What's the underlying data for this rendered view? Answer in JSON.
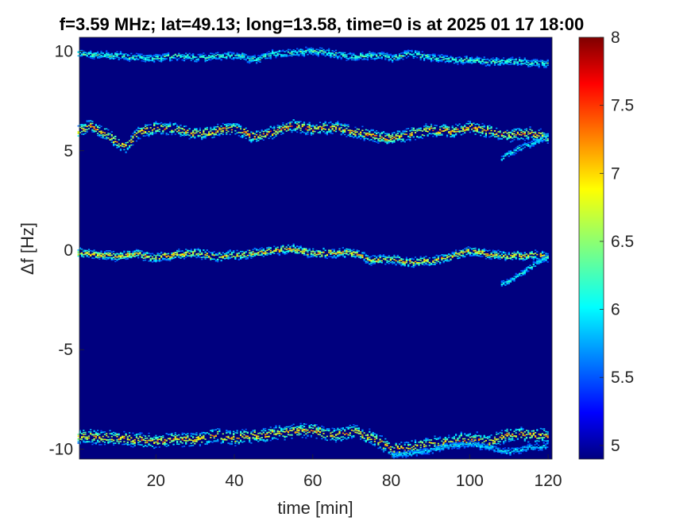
{
  "chart_data": {
    "type": "heatmap",
    "title": "f=3.59 MHz;  lat=49.13; long=13.58, time=0 is at 2025 01 17 18:00",
    "xlabel": "time [min]",
    "ylabel": "Δf [Hz]",
    "xlim": [
      0.5,
      121
    ],
    "ylim": [
      -10.5,
      10.7
    ],
    "x_ticks": [
      20,
      40,
      60,
      80,
      100,
      120
    ],
    "x_tick_labels": [
      "20",
      "40",
      "60",
      "80",
      "100",
      "120"
    ],
    "y_ticks": [
      10,
      5,
      0,
      -5,
      -10
    ],
    "y_tick_labels": [
      "10",
      "5",
      "0",
      "-5",
      "-10"
    ],
    "colorbar": {
      "colormap": "jet",
      "clim": [
        4.9,
        8
      ],
      "ticks": [
        5,
        5.5,
        6,
        6.5,
        7,
        7.5,
        8
      ],
      "tick_labels": [
        "5",
        "5.5",
        "6",
        "6.5",
        "7",
        "7.5",
        "8"
      ]
    },
    "background_value": 4.9,
    "traces": [
      {
        "name": "",
        "x": [
          0,
          5,
          10,
          15,
          20,
          25,
          30,
          35,
          40,
          45,
          50,
          55,
          60,
          65,
          70,
          75,
          80,
          85,
          90,
          95,
          100,
          105,
          110,
          115,
          120
        ],
        "y": [
          9.9,
          9.85,
          9.8,
          9.7,
          9.65,
          9.8,
          9.7,
          9.75,
          9.85,
          9.6,
          9.9,
          9.95,
          10.05,
          9.9,
          9.75,
          9.85,
          9.7,
          9.9,
          9.7,
          9.6,
          9.6,
          9.5,
          9.55,
          9.45,
          9.4
        ],
        "peak": 6.6,
        "spread": 0.18
      },
      {
        "name": "",
        "x": [
          0,
          3,
          6,
          9,
          12,
          15,
          20,
          25,
          30,
          35,
          40,
          45,
          50,
          55,
          60,
          65,
          70,
          75,
          80,
          85,
          90,
          95,
          100,
          105,
          110,
          115,
          120
        ],
        "y": [
          6.0,
          6.3,
          6.0,
          5.6,
          5.2,
          5.9,
          6.2,
          6.1,
          5.9,
          6.0,
          6.2,
          5.7,
          6.0,
          6.3,
          6.1,
          6.2,
          6.0,
          5.8,
          5.6,
          5.9,
          6.1,
          6.0,
          6.2,
          6.0,
          5.8,
          5.9,
          5.7
        ],
        "peak": 7.6,
        "spread": 0.3
      },
      {
        "name": "",
        "x": [
          108,
          110,
          112,
          114,
          116,
          118,
          120
        ],
        "y": [
          4.6,
          4.9,
          5.1,
          5.3,
          5.4,
          5.6,
          5.8
        ],
        "peak": 6.4,
        "spread": 0.15
      },
      {
        "name": "",
        "x": [
          0,
          5,
          10,
          15,
          20,
          25,
          30,
          35,
          40,
          45,
          50,
          55,
          60,
          65,
          70,
          75,
          80,
          85,
          90,
          95,
          100,
          105,
          110,
          115,
          120
        ],
        "y": [
          -0.1,
          -0.2,
          -0.3,
          -0.2,
          -0.35,
          -0.2,
          -0.1,
          -0.3,
          -0.2,
          -0.1,
          0.0,
          0.1,
          -0.15,
          -0.1,
          -0.1,
          -0.5,
          -0.4,
          -0.6,
          -0.5,
          -0.3,
          0.0,
          -0.2,
          -0.3,
          -0.2,
          -0.3
        ],
        "peak": 7.4,
        "spread": 0.22
      },
      {
        "name": "",
        "x": [
          108,
          111,
          114,
          117,
          120
        ],
        "y": [
          -1.7,
          -1.4,
          -1.0,
          -0.6,
          -0.3
        ],
        "peak": 6.4,
        "spread": 0.14
      },
      {
        "name": "",
        "x": [
          0,
          5,
          10,
          15,
          20,
          25,
          30,
          35,
          40,
          45,
          50,
          55,
          60,
          65,
          70,
          75,
          80,
          85,
          90,
          95,
          100,
          105,
          110,
          115,
          120
        ],
        "y": [
          -9.3,
          -9.35,
          -9.4,
          -9.5,
          -9.6,
          -9.45,
          -9.5,
          -9.3,
          -9.4,
          -9.3,
          -9.2,
          -9.05,
          -9.0,
          -9.3,
          -9.1,
          -9.4,
          -10.0,
          -9.9,
          -9.7,
          -9.6,
          -9.45,
          -9.6,
          -9.2,
          -9.25,
          -9.3
        ],
        "peak": 7.5,
        "spread": 0.35
      },
      {
        "name": "",
        "x": [
          80,
          85,
          90,
          95,
          100,
          105,
          110,
          115,
          120
        ],
        "y": [
          -10.3,
          -10.2,
          -10.0,
          -9.8,
          -9.7,
          -9.9,
          -10.1,
          -9.9,
          -9.8
        ],
        "peak": 6.2,
        "spread": 0.15
      }
    ]
  }
}
